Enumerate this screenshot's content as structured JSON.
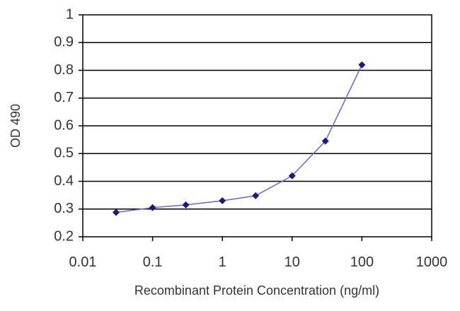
{
  "chart_data": {
    "type": "line",
    "title": "",
    "xlabel": "Recombinant Protein Concentration (ng/ml)",
    "ylabel": "OD 490",
    "x_scale": "log",
    "xlim": [
      0.01,
      1000
    ],
    "ylim": [
      0.2,
      1
    ],
    "x_ticks": [
      "0.01",
      "0.1",
      "1",
      "10",
      "100",
      "1000"
    ],
    "y_ticks": [
      "0.2",
      "0.3",
      "0.4",
      "0.5",
      "0.6",
      "0.7",
      "0.8",
      "0.9",
      "1"
    ],
    "grid": "horizontal",
    "legend": "none",
    "series": [
      {
        "x": [
          0.03,
          0.1,
          0.3,
          1,
          3,
          10,
          30,
          100
        ],
        "y": [
          0.288,
          0.305,
          0.315,
          0.33,
          0.348,
          0.42,
          0.545,
          0.82
        ]
      }
    ],
    "colors": {
      "line": "#6666cc",
      "marker": "#1a1a80",
      "plot_border": "#000000",
      "grid": "#000000",
      "plot_background": "#ffffff"
    }
  }
}
